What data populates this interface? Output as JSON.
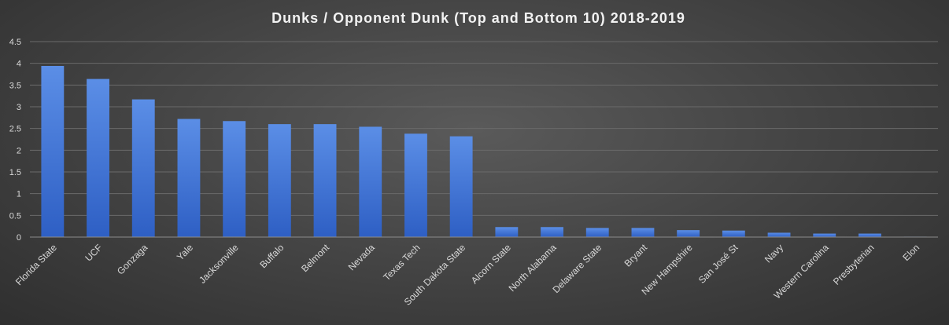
{
  "chart_data": {
    "type": "bar",
    "title": "Dunks / Opponent Dunk (Top and Bottom 10) 2018-2019",
    "xlabel": "",
    "ylabel": "",
    "ylim": [
      0,
      4.5
    ],
    "yticks": [
      "0",
      "0.5",
      "1",
      "1.5",
      "2",
      "2.5",
      "3",
      "3.5",
      "4",
      "4.5"
    ],
    "grid": true,
    "legend": "none",
    "bar_color_top": "#5b8ee6",
    "bar_color_bottom": "#2e5fc4",
    "categories": [
      "Florida State",
      "UCF",
      "Gonzaga",
      "Yale",
      "Jacksonville",
      "Buffalo",
      "Belmont",
      "Nevada",
      "Texas Tech",
      "South Dakota State",
      "Alcorn State",
      "North Alabama",
      "Delaware State",
      "Bryant",
      "New Hampshire",
      "San José St",
      "Navy",
      "Western Carolina",
      "Presbyterian",
      "Elon"
    ],
    "values": [
      3.94,
      3.64,
      3.17,
      2.72,
      2.67,
      2.6,
      2.6,
      2.54,
      2.38,
      2.32,
      0.23,
      0.23,
      0.21,
      0.21,
      0.16,
      0.15,
      0.1,
      0.08,
      0.08,
      0.01
    ]
  }
}
